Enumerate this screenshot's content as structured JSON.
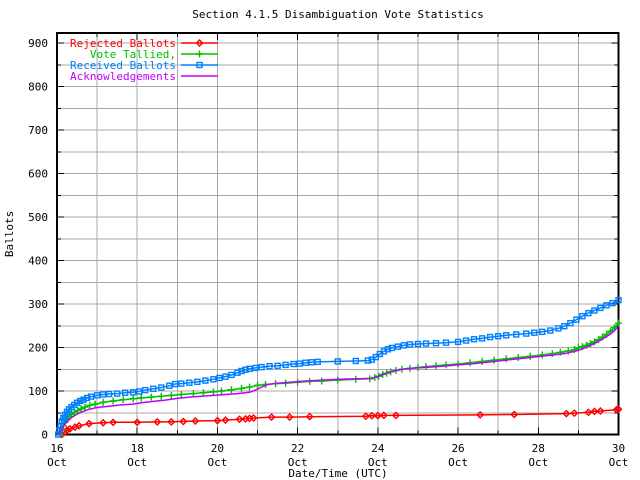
{
  "background": "#ffffff",
  "chart_data": {
    "type": "line",
    "title": "Section 4.1.5 Disambiguation Vote Statistics",
    "xlabel": "Date/Time (UTC)",
    "ylabel": "Ballots",
    "xlim": [
      16,
      30
    ],
    "ylim": [
      0,
      900
    ],
    "x_major_ticks": [
      16,
      18,
      20,
      22,
      24,
      26,
      28,
      30
    ],
    "x_minor_step": 1,
    "y_major_step": 100,
    "y_minor_step": 50,
    "month_label": "Oct",
    "grid": true,
    "grid_color": "#a8a8a8",
    "border_color": "#000000",
    "legend_position": "top-left",
    "series": [
      {
        "name": "Rejected Ballots",
        "color": "#ff0000",
        "marker": "diamond",
        "points": [
          [
            16.12,
            0
          ],
          [
            16.18,
            5
          ],
          [
            16.25,
            10
          ],
          [
            16.32,
            13
          ],
          [
            16.45,
            17
          ],
          [
            16.55,
            20
          ],
          [
            16.8,
            25
          ],
          [
            17.15,
            27
          ],
          [
            17.4,
            28
          ],
          [
            18.0,
            28
          ],
          [
            18.5,
            29
          ],
          [
            18.85,
            29
          ],
          [
            19.15,
            30
          ],
          [
            19.45,
            31
          ],
          [
            20.0,
            32
          ],
          [
            20.2,
            33
          ],
          [
            20.55,
            35
          ],
          [
            20.7,
            36
          ],
          [
            20.8,
            37
          ],
          [
            20.9,
            38
          ],
          [
            21.35,
            40
          ],
          [
            21.8,
            40
          ],
          [
            22.3,
            41
          ],
          [
            23.7,
            42
          ],
          [
            23.85,
            43
          ],
          [
            24.0,
            43
          ],
          [
            24.15,
            44
          ],
          [
            24.45,
            44
          ],
          [
            26.55,
            45
          ],
          [
            27.4,
            46
          ],
          [
            28.7,
            48
          ],
          [
            28.9,
            49
          ],
          [
            29.25,
            51
          ],
          [
            29.4,
            53
          ],
          [
            29.55,
            54
          ],
          [
            29.95,
            57
          ],
          [
            30.0,
            58
          ]
        ]
      },
      {
        "name": "Vote Tallied,",
        "color": "#00c000",
        "marker": "plus",
        "points": [
          [
            16.08,
            0
          ],
          [
            16.12,
            10
          ],
          [
            16.16,
            20
          ],
          [
            16.2,
            28
          ],
          [
            16.25,
            35
          ],
          [
            16.3,
            41
          ],
          [
            16.36,
            46
          ],
          [
            16.44,
            51
          ],
          [
            16.52,
            55
          ],
          [
            16.6,
            59
          ],
          [
            16.7,
            63
          ],
          [
            16.82,
            67
          ],
          [
            16.95,
            70
          ],
          [
            17.15,
            74
          ],
          [
            17.4,
            77
          ],
          [
            17.65,
            80
          ],
          [
            17.9,
            82
          ],
          [
            18.1,
            84
          ],
          [
            18.35,
            86
          ],
          [
            18.6,
            88
          ],
          [
            18.85,
            90
          ],
          [
            19.1,
            92
          ],
          [
            19.4,
            94
          ],
          [
            19.65,
            96
          ],
          [
            19.9,
            98
          ],
          [
            20.1,
            100
          ],
          [
            20.35,
            103
          ],
          [
            20.6,
            106
          ],
          [
            20.8,
            109
          ],
          [
            21.0,
            113
          ],
          [
            21.2,
            115
          ],
          [
            21.45,
            117
          ],
          [
            21.7,
            118
          ],
          [
            22.0,
            120
          ],
          [
            22.3,
            122
          ],
          [
            22.6,
            123
          ],
          [
            23.0,
            125
          ],
          [
            23.45,
            127
          ],
          [
            23.8,
            128
          ],
          [
            23.92,
            131
          ],
          [
            24.02,
            134
          ],
          [
            24.12,
            138
          ],
          [
            24.22,
            141
          ],
          [
            24.32,
            144
          ],
          [
            24.45,
            147
          ],
          [
            24.6,
            150
          ],
          [
            24.8,
            152
          ],
          [
            25.0,
            154
          ],
          [
            25.2,
            156
          ],
          [
            25.45,
            158
          ],
          [
            25.7,
            160
          ],
          [
            26.0,
            162
          ],
          [
            26.3,
            165
          ],
          [
            26.6,
            168
          ],
          [
            26.9,
            171
          ],
          [
            27.2,
            174
          ],
          [
            27.5,
            177
          ],
          [
            27.8,
            180
          ],
          [
            28.1,
            183
          ],
          [
            28.35,
            186
          ],
          [
            28.55,
            189
          ],
          [
            28.75,
            192
          ],
          [
            28.9,
            195
          ],
          [
            29.0,
            199
          ],
          [
            29.1,
            202
          ],
          [
            29.2,
            205
          ],
          [
            29.3,
            209
          ],
          [
            29.4,
            213
          ],
          [
            29.5,
            218
          ],
          [
            29.6,
            224
          ],
          [
            29.7,
            230
          ],
          [
            29.8,
            238
          ],
          [
            29.9,
            246
          ],
          [
            30.0,
            256
          ]
        ]
      },
      {
        "name": "Received Ballots",
        "color": "#0080ff",
        "marker": "square",
        "points": [
          [
            16.03,
            0
          ],
          [
            16.06,
            10
          ],
          [
            16.09,
            20
          ],
          [
            16.12,
            30
          ],
          [
            16.16,
            38
          ],
          [
            16.2,
            45
          ],
          [
            16.25,
            52
          ],
          [
            16.3,
            58
          ],
          [
            16.36,
            63
          ],
          [
            16.43,
            68
          ],
          [
            16.5,
            73
          ],
          [
            16.58,
            77
          ],
          [
            16.66,
            80
          ],
          [
            16.75,
            84
          ],
          [
            16.85,
            87
          ],
          [
            17.0,
            90
          ],
          [
            17.15,
            92
          ],
          [
            17.3,
            93
          ],
          [
            17.5,
            94
          ],
          [
            17.7,
            96
          ],
          [
            17.9,
            97
          ],
          [
            18.05,
            99
          ],
          [
            18.2,
            102
          ],
          [
            18.4,
            105
          ],
          [
            18.6,
            108
          ],
          [
            18.8,
            112
          ],
          [
            18.95,
            116
          ],
          [
            19.1,
            117
          ],
          [
            19.3,
            119
          ],
          [
            19.5,
            121
          ],
          [
            19.7,
            124
          ],
          [
            19.9,
            127
          ],
          [
            20.05,
            130
          ],
          [
            20.2,
            133
          ],
          [
            20.35,
            137
          ],
          [
            20.5,
            142
          ],
          [
            20.6,
            146
          ],
          [
            20.7,
            149
          ],
          [
            20.8,
            151
          ],
          [
            20.95,
            153
          ],
          [
            21.1,
            155
          ],
          [
            21.3,
            157
          ],
          [
            21.5,
            158
          ],
          [
            21.7,
            160
          ],
          [
            21.9,
            162
          ],
          [
            22.05,
            163
          ],
          [
            22.2,
            165
          ],
          [
            22.35,
            166
          ],
          [
            22.5,
            167
          ],
          [
            23.0,
            168
          ],
          [
            23.45,
            169
          ],
          [
            23.75,
            170
          ],
          [
            23.85,
            172
          ],
          [
            23.95,
            178
          ],
          [
            24.05,
            185
          ],
          [
            24.15,
            191
          ],
          [
            24.25,
            196
          ],
          [
            24.35,
            199
          ],
          [
            24.5,
            202
          ],
          [
            24.65,
            205
          ],
          [
            24.8,
            207
          ],
          [
            25.0,
            208
          ],
          [
            25.2,
            209
          ],
          [
            25.45,
            210
          ],
          [
            25.7,
            211
          ],
          [
            26.0,
            213
          ],
          [
            26.2,
            216
          ],
          [
            26.4,
            219
          ],
          [
            26.6,
            221
          ],
          [
            26.8,
            224
          ],
          [
            27.0,
            226
          ],
          [
            27.2,
            228
          ],
          [
            27.45,
            230
          ],
          [
            27.7,
            232
          ],
          [
            27.9,
            234
          ],
          [
            28.1,
            236
          ],
          [
            28.3,
            239
          ],
          [
            28.5,
            244
          ],
          [
            28.65,
            249
          ],
          [
            28.8,
            256
          ],
          [
            28.95,
            264
          ],
          [
            29.1,
            272
          ],
          [
            29.25,
            279
          ],
          [
            29.4,
            285
          ],
          [
            29.55,
            291
          ],
          [
            29.7,
            297
          ],
          [
            29.85,
            302
          ],
          [
            30.0,
            309
          ]
        ]
      },
      {
        "name": "Acknowledgements",
        "color": "#c000ff",
        "marker": "none",
        "points": [
          [
            16.04,
            0
          ],
          [
            16.1,
            12
          ],
          [
            16.18,
            22
          ],
          [
            16.28,
            32
          ],
          [
            16.38,
            40
          ],
          [
            16.5,
            47
          ],
          [
            16.65,
            53
          ],
          [
            16.8,
            58
          ],
          [
            17.0,
            62
          ],
          [
            17.3,
            65
          ],
          [
            17.6,
            68
          ],
          [
            17.9,
            70
          ],
          [
            18.1,
            73
          ],
          [
            18.4,
            76
          ],
          [
            18.7,
            79
          ],
          [
            19.0,
            83
          ],
          [
            19.3,
            86
          ],
          [
            19.6,
            88
          ],
          [
            19.9,
            90
          ],
          [
            20.2,
            92
          ],
          [
            20.5,
            94
          ],
          [
            20.8,
            97
          ],
          [
            20.95,
            102
          ],
          [
            21.1,
            109
          ],
          [
            21.25,
            115
          ],
          [
            21.5,
            118
          ],
          [
            21.8,
            120
          ],
          [
            22.2,
            123
          ],
          [
            22.6,
            125
          ],
          [
            23.0,
            127
          ],
          [
            23.5,
            128
          ],
          [
            23.85,
            129
          ],
          [
            24.0,
            133
          ],
          [
            24.15,
            139
          ],
          [
            24.3,
            144
          ],
          [
            24.5,
            148
          ],
          [
            24.7,
            151
          ],
          [
            25.0,
            153
          ],
          [
            25.3,
            155
          ],
          [
            25.6,
            157
          ],
          [
            26.0,
            160
          ],
          [
            26.4,
            163
          ],
          [
            26.8,
            167
          ],
          [
            27.2,
            171
          ],
          [
            27.6,
            175
          ],
          [
            28.0,
            179
          ],
          [
            28.4,
            183
          ],
          [
            28.7,
            187
          ],
          [
            28.9,
            191
          ],
          [
            29.05,
            195
          ],
          [
            29.2,
            201
          ],
          [
            29.35,
            207
          ],
          [
            29.5,
            214
          ],
          [
            29.65,
            222
          ],
          [
            29.8,
            231
          ],
          [
            29.9,
            239
          ],
          [
            30.0,
            249
          ]
        ]
      }
    ]
  }
}
